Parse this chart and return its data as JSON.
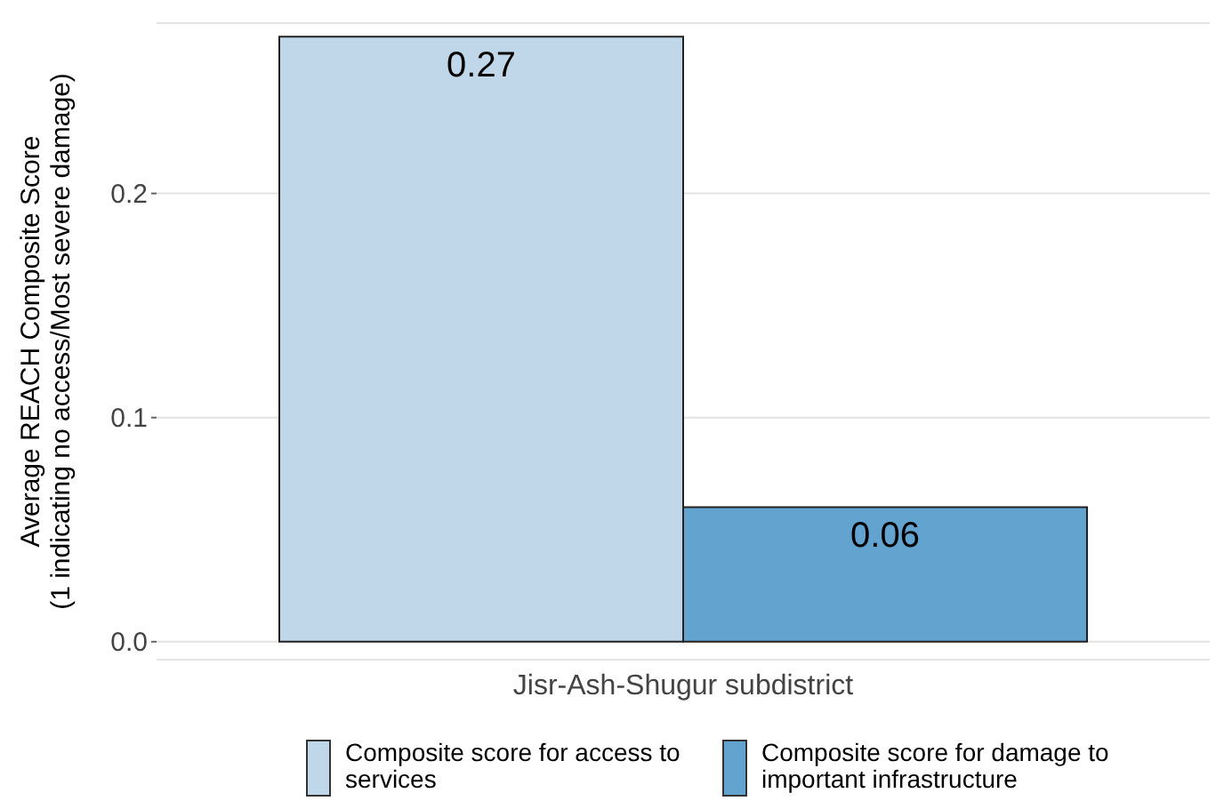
{
  "chart_data": {
    "type": "bar",
    "categories": [
      "Jisr-Ash-Shugur subdistrict"
    ],
    "series": [
      {
        "name": "Composite score for access to services",
        "color": "#c0d7ea",
        "values": [
          0.27
        ]
      },
      {
        "name": "Composite score for damage to important infrastructure",
        "color": "#63a3d0",
        "values": [
          0.06
        ]
      }
    ],
    "ylabel": "Average REACH Composite Score\n(1 indicating no access/Most severe damage)",
    "ylim": [
      -0.008,
      0.276
    ],
    "yticks": [
      {
        "value": 0,
        "label": "0.0"
      },
      {
        "value": 0.1,
        "label": "0.1"
      },
      {
        "value": 0.2,
        "label": "0.2"
      }
    ],
    "grid": "y",
    "legend": "bottom",
    "data_labels": true
  }
}
